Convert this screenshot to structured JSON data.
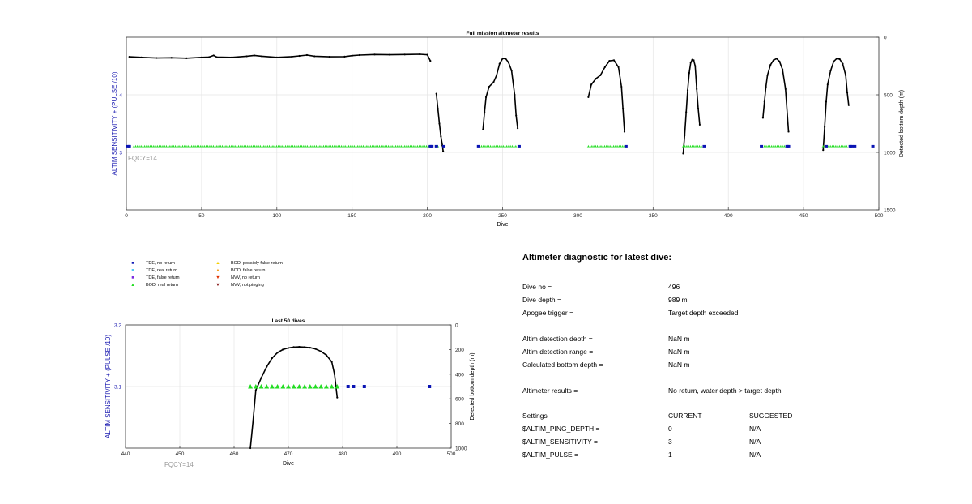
{
  "chart_data": [
    {
      "type": "line",
      "title": "Full mission altimeter results",
      "xlabel": "Dive",
      "ylabel": "ALTIM SENSITIVITY + (PULSE /10)",
      "ylabel_right": "Detected bottom depth (m)",
      "xlim": [
        0,
        500
      ],
      "ylim": [
        2,
        5
      ],
      "ylim_right": [
        0,
        1500
      ],
      "right_axis_reversed": true,
      "xticks": [
        "0",
        "50",
        "100",
        "150",
        "200",
        "250",
        "300",
        "350",
        "400",
        "450",
        "500"
      ],
      "yticks": [
        "3",
        "4"
      ],
      "yticks_right": [
        "0",
        "500",
        "1000",
        "1500"
      ],
      "annotation": "FQCY=14",
      "grid": true,
      "series": [
        {
          "kind": "bottom_depth_line",
          "points": [
            [
              2,
              170
            ],
            [
              10,
              175
            ],
            [
              20,
              180
            ],
            [
              30,
              178
            ],
            [
              40,
              182
            ],
            [
              50,
              175
            ],
            [
              55,
              172
            ],
            [
              58,
              158
            ],
            [
              60,
              172
            ],
            [
              70,
              175
            ],
            [
              80,
              165
            ],
            [
              85,
              158
            ],
            [
              90,
              165
            ],
            [
              100,
              175
            ],
            [
              110,
              168
            ],
            [
              115,
              162
            ],
            [
              120,
              155
            ],
            [
              125,
              165
            ],
            [
              135,
              170
            ],
            [
              145,
              168
            ],
            [
              150,
              160
            ],
            [
              155,
              155
            ],
            [
              165,
              150
            ],
            [
              175,
              152
            ],
            [
              185,
              150
            ],
            [
              195,
              148
            ],
            [
              200,
              152
            ],
            [
              202,
              205
            ]
          ]
        },
        {
          "kind": "bottom_depth_line",
          "points": [
            [
              206,
              490
            ],
            [
              207,
              620
            ],
            [
              208,
              750
            ],
            [
              209,
              860
            ],
            [
              210,
              940
            ],
            [
              210.5,
              990
            ]
          ]
        },
        {
          "kind": "bottom_depth_line",
          "points": [
            [
              237,
              800
            ],
            [
              238,
              650
            ],
            [
              239,
              520
            ],
            [
              241,
              430
            ],
            [
              244,
              390
            ],
            [
              246,
              330
            ],
            [
              248,
              230
            ],
            [
              250,
              185
            ],
            [
              252,
              185
            ],
            [
              254,
              220
            ],
            [
              256,
              290
            ],
            [
              258,
              500
            ],
            [
              259,
              680
            ],
            [
              260,
              790
            ]
          ]
        },
        {
          "kind": "bottom_depth_line",
          "points": [
            [
              307,
              520
            ],
            [
              309,
              410
            ],
            [
              312,
              360
            ],
            [
              315,
              330
            ],
            [
              318,
              260
            ],
            [
              321,
              205
            ],
            [
              324,
              200
            ],
            [
              327,
              260
            ],
            [
              329,
              430
            ],
            [
              330,
              620
            ],
            [
              331,
              820
            ]
          ]
        },
        {
          "kind": "bottom_depth_line",
          "points": [
            [
              370,
              1010
            ],
            [
              371,
              850
            ],
            [
              372,
              650
            ],
            [
              373,
              460
            ],
            [
              374,
              310
            ],
            [
              375,
              220
            ],
            [
              376,
              195
            ],
            [
              377,
              200
            ],
            [
              378,
              250
            ],
            [
              379,
              450
            ],
            [
              380,
              620
            ],
            [
              381,
              760
            ]
          ]
        },
        {
          "kind": "bottom_depth_line",
          "points": [
            [
              423,
              700
            ],
            [
              424,
              560
            ],
            [
              425,
              430
            ],
            [
              426,
              330
            ],
            [
              428,
              240
            ],
            [
              430,
              200
            ],
            [
              432,
              185
            ],
            [
              434,
              210
            ],
            [
              436,
              280
            ],
            [
              438,
              450
            ],
            [
              440,
              820
            ]
          ]
        },
        {
          "kind": "bottom_depth_line",
          "points": [
            [
              463,
              980
            ],
            [
              464,
              780
            ],
            [
              465,
              560
            ],
            [
              466,
              410
            ],
            [
              468,
              290
            ],
            [
              470,
              210
            ],
            [
              472,
              185
            ],
            [
              474,
              190
            ],
            [
              476,
              230
            ],
            [
              478,
              330
            ],
            [
              479,
              480
            ],
            [
              480,
              590
            ]
          ]
        },
        {
          "kind": "BOD_real_return",
          "y": 3.1,
          "ranges": [
            [
              5,
              201
            ],
            [
              207,
              208
            ],
            [
              236,
              259
            ],
            [
              307,
              331
            ],
            [
              370,
              383
            ],
            [
              424,
              440
            ],
            [
              463,
              479
            ]
          ]
        },
        {
          "kind": "TDE_no_return",
          "y": 3.1,
          "dives": [
            1,
            2,
            202,
            203,
            206,
            211,
            234,
            261,
            332,
            384,
            422,
            439,
            440,
            465,
            481,
            482,
            484,
            496
          ]
        }
      ]
    },
    {
      "type": "line",
      "title": "Last 50 dives",
      "xlabel": "Dive",
      "ylabel": "ALTIM SENSITIVITY + (PULSE /10)",
      "ylabel_right": "Detected bottom depth (m)",
      "xlim": [
        440,
        500
      ],
      "ylim": [
        3.0,
        3.2
      ],
      "ylim_right": [
        0,
        1000
      ],
      "right_axis_reversed": true,
      "xticks": [
        "440",
        "450",
        "460",
        "470",
        "480",
        "490",
        "500"
      ],
      "yticks": [
        "3.2",
        "3.1"
      ],
      "yticks_right": [
        "0",
        "200",
        "400",
        "600",
        "800",
        "1000"
      ],
      "annotation": "FQCY=14",
      "grid": true,
      "series": [
        {
          "kind": "bottom_depth_line",
          "points": [
            [
              463,
              1000
            ],
            [
              463.5,
              780
            ],
            [
              464,
              530
            ],
            [
              465,
              430
            ],
            [
              466,
              340
            ],
            [
              467,
              270
            ],
            [
              468,
              225
            ],
            [
              469,
              200
            ],
            [
              470,
              187
            ],
            [
              471,
              180
            ],
            [
              472,
              178
            ],
            [
              473,
              180
            ],
            [
              474,
              185
            ],
            [
              475,
              195
            ],
            [
              476,
              215
            ],
            [
              477,
              245
            ],
            [
              478,
              300
            ],
            [
              478.5,
              400
            ],
            [
              479,
              590
            ]
          ]
        },
        {
          "kind": "BOD_real_return",
          "y": 3.1,
          "dives": [
            463,
            464,
            465,
            466,
            467,
            468,
            469,
            470,
            471,
            472,
            473,
            474,
            475,
            476,
            477,
            478,
            479
          ]
        },
        {
          "kind": "TDE_no_return",
          "y": 3.1,
          "dives": [
            481,
            482,
            484,
            496
          ]
        }
      ]
    }
  ],
  "legend": [
    {
      "label": "TDE, no return",
      "symbol": "square",
      "color": "#0a14b4"
    },
    {
      "label": "TDE, real return",
      "symbol": "square",
      "color": "#4fc8f0"
    },
    {
      "label": "TDE, false return",
      "symbol": "square",
      "color": "#7b2be0"
    },
    {
      "label": "BOD, real return",
      "symbol": "triangle-up",
      "color": "#22dd22"
    },
    {
      "label": "BOD, possibly false return",
      "symbol": "triangle-up",
      "color": "#f5d000"
    },
    {
      "label": "BOD, false return",
      "symbol": "triangle-up",
      "color": "#f59000"
    },
    {
      "label": "NVV, no return",
      "symbol": "triangle-down",
      "color": "#e03000"
    },
    {
      "label": "NVV, not pinging",
      "symbol": "triangle-down",
      "color": "#7a0000"
    }
  ],
  "diagnostic": {
    "title": "Altimeter diagnostic for latest dive:",
    "dive_no_label": "Dive no =",
    "dive_no": "496",
    "dive_depth_label": "Dive depth =",
    "dive_depth": "989 m",
    "apogee_label": "Apogee trigger =",
    "apogee": "Target depth exceeded",
    "detect_depth_label": "Altim detection depth =",
    "detect_depth": "NaN m",
    "detect_range_label": "Altim detection range =",
    "detect_range": "NaN m",
    "calc_bottom_label": "Calculated bottom depth =",
    "calc_bottom": "NaN m",
    "results_label": "Altimeter results =",
    "results": "No return, water depth > target depth",
    "settings_label": "Settings",
    "current_label": "CURRENT",
    "suggested_label": "SUGGESTED",
    "settings": [
      {
        "name": "$ALTIM_PING_DEPTH =",
        "current": "0",
        "suggested": "N/A"
      },
      {
        "name": "$ALTIM_SENSITIVITY =",
        "current": "3",
        "suggested": "N/A"
      },
      {
        "name": "$ALTIM_PULSE =",
        "current": "1",
        "suggested": "N/A"
      }
    ]
  },
  "colors": {
    "ylabel": "#1a1ab0",
    "annotation": "#999999",
    "line": "#000000"
  }
}
